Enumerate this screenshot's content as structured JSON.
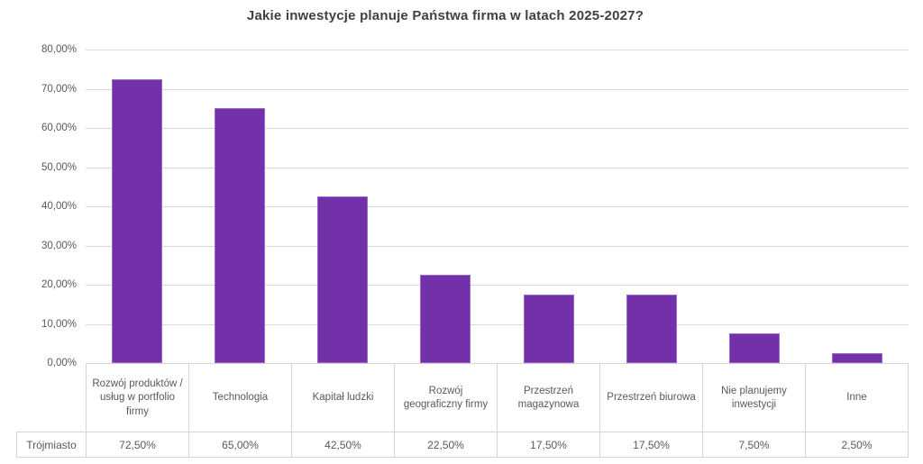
{
  "chart_data": {
    "type": "bar",
    "title": "Jakie inwestycje planuje Państwa firma w latach 2025-2027?",
    "categories": [
      "Rozwój produktów / usług w portfolio firmy",
      "Technologia",
      "Kapitał ludzki",
      "Rozwój geograficzny firmy",
      "Przestrzeń magazynowa",
      "Przestrzeń biurowa",
      "Nie planujemy inwestycji",
      "Inne"
    ],
    "series": [
      {
        "name": "Trójmiasto",
        "values": [
          72.5,
          65.0,
          42.5,
          22.5,
          17.5,
          17.5,
          7.5,
          2.5
        ],
        "value_labels": [
          "72,50%",
          "65,00%",
          "42,50%",
          "22,50%",
          "17,50%",
          "17,50%",
          "7,50%",
          "2,50%"
        ]
      }
    ],
    "xlabel": "",
    "ylabel": "",
    "ylim": [
      0,
      80
    ],
    "ytick_step": 10,
    "ytick_labels": [
      "0,00%",
      "10,00%",
      "20,00%",
      "30,00%",
      "40,00%",
      "50,00%",
      "60,00%",
      "70,00%",
      "80,00%"
    ],
    "grid": true,
    "legend_position": "none",
    "data_table_shown": true,
    "colors": {
      "bar_fill": "#7231a8",
      "bar_border": "#9a68c8",
      "gridline": "#d9d9d9",
      "axis_text": "#595959",
      "title_text": "#404040",
      "table_border": "#d4d4d4"
    }
  }
}
